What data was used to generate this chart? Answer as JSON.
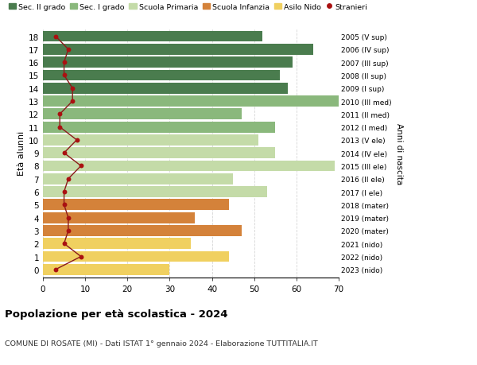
{
  "ages": [
    18,
    17,
    16,
    15,
    14,
    13,
    12,
    11,
    10,
    9,
    8,
    7,
    6,
    5,
    4,
    3,
    2,
    1,
    0
  ],
  "bar_values": [
    52,
    64,
    59,
    56,
    58,
    70,
    47,
    55,
    51,
    55,
    69,
    45,
    53,
    44,
    36,
    47,
    35,
    44,
    30
  ],
  "bar_colors": [
    "#4a7c4e",
    "#4a7c4e",
    "#4a7c4e",
    "#4a7c4e",
    "#4a7c4e",
    "#8ab87c",
    "#8ab87c",
    "#8ab87c",
    "#c4dba8",
    "#c4dba8",
    "#c4dba8",
    "#c4dba8",
    "#c4dba8",
    "#d4823a",
    "#d4823a",
    "#d4823a",
    "#f0d060",
    "#f0d060",
    "#f0d060"
  ],
  "stranieri_values": [
    3,
    6,
    5,
    5,
    7,
    7,
    4,
    4,
    8,
    5,
    9,
    6,
    5,
    5,
    6,
    6,
    5,
    9,
    3
  ],
  "right_labels": [
    "2005 (V sup)",
    "2006 (IV sup)",
    "2007 (III sup)",
    "2008 (II sup)",
    "2009 (I sup)",
    "2010 (III med)",
    "2011 (II med)",
    "2012 (I med)",
    "2013 (V ele)",
    "2014 (IV ele)",
    "2015 (III ele)",
    "2016 (II ele)",
    "2017 (I ele)",
    "2018 (mater)",
    "2019 (mater)",
    "2020 (mater)",
    "2021 (nido)",
    "2022 (nido)",
    "2023 (nido)"
  ],
  "legend_labels": [
    "Sec. II grado",
    "Sec. I grado",
    "Scuola Primaria",
    "Scuola Infanzia",
    "Asilo Nido",
    "Stranieri"
  ],
  "legend_colors": [
    "#4a7c4e",
    "#8ab87c",
    "#c4dba8",
    "#d4823a",
    "#f0d060",
    "#aa1111"
  ],
  "title": "Popolazione per età scolastica - 2024",
  "subtitle": "COMUNE DI ROSATE (MI) - Dati ISTAT 1° gennaio 2024 - Elaborazione TUTTITALIA.IT",
  "ylabel": "Età alunni",
  "right_ylabel": "Anni di nascita",
  "xlim": [
    0,
    70
  ],
  "xticks": [
    0,
    10,
    20,
    30,
    40,
    50,
    60,
    70
  ],
  "stranieri_color": "#aa1111",
  "stranieri_line_color": "#8b1a1a",
  "grid_color": "#cccccc",
  "bg_color": "#ffffff"
}
